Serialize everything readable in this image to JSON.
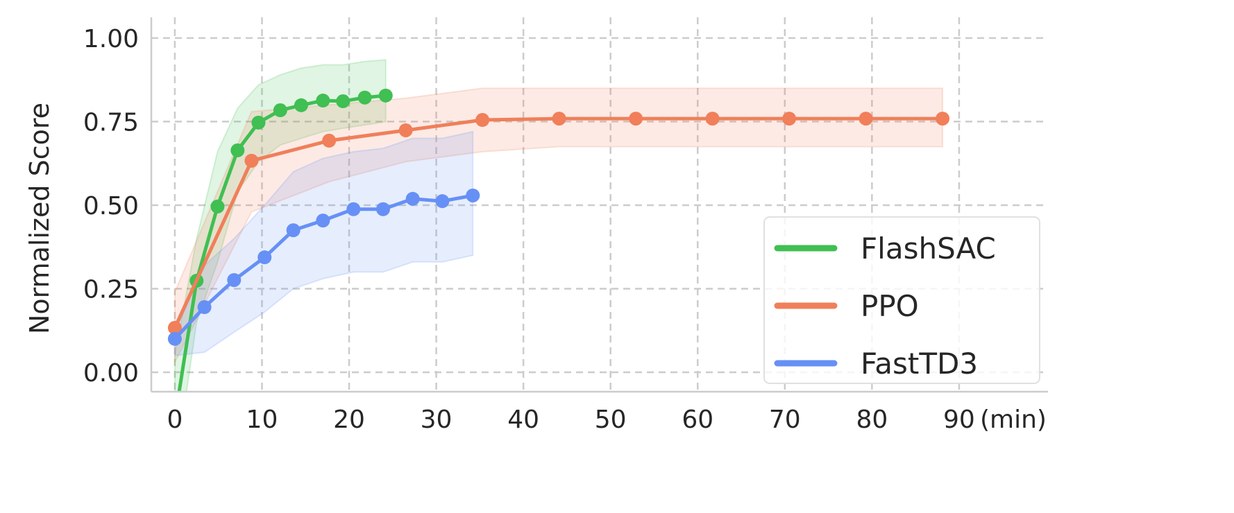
{
  "chart_data": {
    "type": "line",
    "title": "",
    "xlabel": "(min)",
    "ylabel": "Normalized Score",
    "xlim": [
      -2.7,
      100.2
    ],
    "ylim": [
      -0.058,
      1.062
    ],
    "xticks": [
      0,
      10,
      20,
      30,
      40,
      50,
      60,
      70,
      80,
      90
    ],
    "xtick_labels": [
      "0",
      "10",
      "20",
      "30",
      "40",
      "50",
      "60",
      "70",
      "80",
      "90"
    ],
    "yticks": [
      0,
      0.25,
      0.5,
      0.75,
      1.0
    ],
    "ytick_labels": [
      "0.00",
      "0.25",
      "0.50",
      "0.75",
      "1.00"
    ],
    "grid": true,
    "legend_position": "bottom-right",
    "series": [
      {
        "name": "FlashSAC",
        "color": "#40bf52",
        "x": [
          0,
          2.5,
          4.9,
          7.2,
          9.6,
          12.1,
          14.5,
          17.0,
          19.3,
          21.8,
          24.2
        ],
        "y": [
          -0.14,
          0.274,
          0.496,
          0.664,
          0.747,
          0.784,
          0.799,
          0.813,
          0.811,
          0.822,
          0.828
        ],
        "upper": [
          0.05,
          0.4,
          0.66,
          0.79,
          0.86,
          0.89,
          0.91,
          0.92,
          0.92,
          0.93,
          0.935
        ],
        "lower": [
          -0.3,
          0.15,
          0.33,
          0.54,
          0.63,
          0.68,
          0.7,
          0.72,
          0.73,
          0.74,
          0.75
        ],
        "markers": [
          false,
          true,
          true,
          true,
          true,
          true,
          true,
          true,
          true,
          true,
          true
        ]
      },
      {
        "name": "PPO",
        "color": "#f07f5a",
        "x": [
          0,
          8.8,
          17.7,
          26.5,
          35.3,
          44.1,
          52.9,
          61.7,
          70.5,
          79.3,
          88.1
        ],
        "y": [
          0.133,
          0.633,
          0.693,
          0.724,
          0.755,
          0.759,
          0.759,
          0.759,
          0.759,
          0.759,
          0.759
        ],
        "upper": [
          0.24,
          0.78,
          0.8,
          0.82,
          0.85,
          0.85,
          0.85,
          0.85,
          0.85,
          0.85,
          0.85
        ],
        "lower": [
          0.03,
          0.48,
          0.57,
          0.63,
          0.66,
          0.675,
          0.675,
          0.675,
          0.675,
          0.675,
          0.675
        ],
        "markers": [
          true,
          true,
          true,
          true,
          true,
          true,
          true,
          true,
          true,
          true,
          true
        ]
      },
      {
        "name": "FastTD3",
        "color": "#6690f5",
        "x": [
          0,
          3.4,
          6.8,
          10.3,
          13.6,
          17.0,
          20.5,
          23.9,
          27.3,
          30.7,
          34.2
        ],
        "y": [
          0.1,
          0.195,
          0.276,
          0.344,
          0.425,
          0.454,
          0.488,
          0.488,
          0.519,
          0.512,
          0.529
        ],
        "upper": [
          0.12,
          0.32,
          0.4,
          0.5,
          0.6,
          0.64,
          0.66,
          0.67,
          0.7,
          0.7,
          0.72
        ],
        "lower": [
          0.05,
          0.06,
          0.12,
          0.18,
          0.25,
          0.28,
          0.3,
          0.3,
          0.33,
          0.33,
          0.35
        ],
        "markers": [
          true,
          true,
          true,
          true,
          true,
          true,
          true,
          true,
          true,
          true,
          true
        ]
      }
    ]
  }
}
